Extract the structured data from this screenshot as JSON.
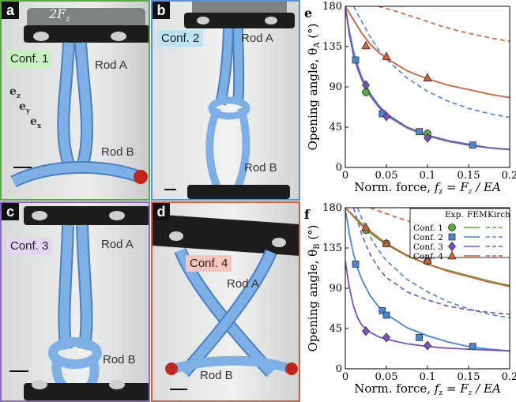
{
  "photos": {
    "a": {
      "letter": "a",
      "conf": "Conf. 1",
      "rodA": "Rod A",
      "rodB": "Rod B",
      "force": "2F",
      "force_sub": "z",
      "border": "#58a84a",
      "tag_bg": "#c9f0c0",
      "axes": {
        "ez": "e",
        "ez_sub": "z",
        "ey": "e",
        "ey_sub": "y",
        "ex": "e",
        "ex_sub": "x"
      }
    },
    "b": {
      "letter": "b",
      "conf": "Conf. 2",
      "rodA": "Rod A",
      "rodB": "Rod B",
      "border": "#5a8fd6",
      "tag_bg": "#bfe3f2"
    },
    "c": {
      "letter": "c",
      "conf": "Conf. 3",
      "rodA": "Rod A",
      "rodB": "Rod B",
      "border": "#8d68c4",
      "tag_bg": "#e2d6f2"
    },
    "d": {
      "letter": "d",
      "conf": "Conf. 4",
      "rodA": "Rod A",
      "rodB": "Rod B",
      "border": "#d2603a",
      "tag_bg": "#f6c6bd"
    }
  },
  "colors": {
    "rod": "#7eb0e6",
    "rod_dark": "#4d7fc0",
    "plate": "#1d1d1d",
    "conf1": "#5aaa40",
    "conf2": "#4a86d8",
    "conf3": "#7b4fbe",
    "conf4": "#d2603a"
  },
  "legend": {
    "headers": [
      "Exp.",
      "FEM",
      "Kirch"
    ],
    "rows": [
      "Conf. 1",
      "Conf. 2",
      "Conf. 3",
      "Conf. 4"
    ]
  },
  "chart_data": [
    {
      "panel": "e",
      "type": "scatter",
      "ylabel": "Opening angle, θ",
      "ylabel_sub": "A",
      "ylabel_unit": " (°)",
      "xlabel": "Norm. force, ",
      "xlabel_math": "f",
      "xlabel_rest": " = F",
      "xlabel_rest2": " / EA",
      "xlim": [
        0,
        0.2
      ],
      "ylim": [
        0,
        180
      ],
      "xticks": [
        "0",
        "0.05",
        "0.1",
        "0.15",
        "0.2"
      ],
      "yticks": [
        "0",
        "45",
        "90",
        "135",
        "180"
      ],
      "series": [
        {
          "name": "Conf. 1",
          "exp": [
            [
              0.025,
              84
            ],
            [
              0.1,
              38
            ]
          ],
          "fem": [
            [
              0,
              180
            ],
            [
              0.005,
              150
            ],
            [
              0.01,
              125
            ],
            [
              0.015,
              110
            ],
            [
              0.02,
              98
            ],
            [
              0.03,
              80
            ],
            [
              0.04,
              68
            ],
            [
              0.05,
              58
            ],
            [
              0.075,
              44
            ],
            [
              0.1,
              35
            ],
            [
              0.125,
              29
            ],
            [
              0.15,
              25
            ],
            [
              0.175,
              22
            ],
            [
              0.2,
              20
            ]
          ]
        },
        {
          "name": "Conf. 2",
          "exp": [
            [
              0.0125,
              120
            ],
            [
              0.045,
              60
            ],
            [
              0.09,
              40
            ],
            [
              0.155,
              25
            ]
          ],
          "fem": [
            [
              0,
              178
            ],
            [
              0.005,
              152
            ],
            [
              0.01,
              130
            ],
            [
              0.015,
              114
            ],
            [
              0.02,
              101
            ],
            [
              0.03,
              83
            ],
            [
              0.04,
              70
            ],
            [
              0.05,
              60
            ],
            [
              0.075,
              45
            ],
            [
              0.1,
              36
            ],
            [
              0.125,
              30
            ],
            [
              0.15,
              26
            ],
            [
              0.175,
              22
            ],
            [
              0.2,
              20
            ]
          ],
          "kirch": [
            [
              0.01,
              180
            ],
            [
              0.02,
              163
            ],
            [
              0.03,
              146
            ],
            [
              0.04,
              132
            ],
            [
              0.05,
              121
            ],
            [
              0.075,
              100
            ],
            [
              0.1,
              85
            ],
            [
              0.125,
              74
            ],
            [
              0.15,
              66
            ],
            [
              0.175,
              60
            ],
            [
              0.2,
              56
            ]
          ]
        },
        {
          "name": "Conf. 3",
          "exp": [
            [
              0.025,
              92
            ],
            [
              0.05,
              57
            ],
            [
              0.1,
              33
            ]
          ],
          "fem": [
            [
              0,
              180
            ],
            [
              0.005,
              148
            ],
            [
              0.01,
              126
            ],
            [
              0.015,
              111
            ],
            [
              0.02,
              99
            ],
            [
              0.03,
              81
            ],
            [
              0.04,
              69
            ],
            [
              0.05,
              59
            ],
            [
              0.075,
              45
            ],
            [
              0.1,
              36
            ],
            [
              0.125,
              30
            ],
            [
              0.15,
              25
            ],
            [
              0.175,
              22
            ],
            [
              0.2,
              20
            ]
          ]
        },
        {
          "name": "Conf. 4",
          "exp": [
            [
              0.025,
              136
            ],
            [
              0.05,
              124
            ],
            [
              0.1,
              100
            ]
          ],
          "fem": [
            [
              0,
              180
            ],
            [
              0.01,
              165
            ],
            [
              0.02,
              150
            ],
            [
              0.03,
              138
            ],
            [
              0.04,
              129
            ],
            [
              0.05,
              122
            ],
            [
              0.075,
              108
            ],
            [
              0.1,
              99
            ],
            [
              0.125,
              92
            ],
            [
              0.15,
              87
            ],
            [
              0.175,
              82
            ],
            [
              0.2,
              78
            ]
          ],
          "kirch": [
            [
              0.04,
              180
            ],
            [
              0.06,
              175
            ],
            [
              0.08,
              169
            ],
            [
              0.1,
              163
            ],
            [
              0.12,
              157
            ],
            [
              0.14,
              152
            ],
            [
              0.16,
              148
            ],
            [
              0.18,
              144
            ],
            [
              0.2,
              141
            ]
          ]
        }
      ]
    },
    {
      "panel": "f",
      "type": "scatter",
      "ylabel": "Opening angle, θ",
      "ylabel_sub": "B",
      "ylabel_unit": " (°)",
      "xlabel": "Norm. force, ",
      "xlabel_math": "f",
      "xlabel_rest": " = F",
      "xlabel_rest2": " / EA",
      "xlim": [
        0,
        0.2
      ],
      "ylim": [
        0,
        180
      ],
      "xticks": [
        "0",
        "0.05",
        "0.1",
        "0.15",
        "0.2"
      ],
      "yticks": [
        "0",
        "45",
        "90",
        "135",
        "180"
      ],
      "series": [
        {
          "name": "Conf. 1",
          "exp": [
            [
              0.025,
              155
            ],
            [
              0.05,
              140
            ],
            [
              0.1,
              120
            ]
          ],
          "fem": [
            [
              0,
              180
            ],
            [
              0.01,
              170
            ],
            [
              0.02,
              160
            ],
            [
              0.03,
              152
            ],
            [
              0.04,
              145
            ],
            [
              0.05,
              139
            ],
            [
              0.075,
              126
            ],
            [
              0.1,
              117
            ],
            [
              0.125,
              110
            ],
            [
              0.15,
              104
            ],
            [
              0.175,
              98
            ],
            [
              0.2,
              93
            ]
          ]
        },
        {
          "name": "Conf. 2",
          "exp": [
            [
              0.0125,
              117
            ],
            [
              0.045,
              65
            ],
            [
              0.05,
              60
            ],
            [
              0.09,
              35
            ],
            [
              0.155,
              25
            ]
          ],
          "fem": [
            [
              0,
              178
            ],
            [
              0.005,
              150
            ],
            [
              0.01,
              128
            ],
            [
              0.015,
              112
            ],
            [
              0.02,
              100
            ],
            [
              0.03,
              82
            ],
            [
              0.04,
              70
            ],
            [
              0.05,
              61
            ],
            [
              0.075,
              46
            ],
            [
              0.1,
              37
            ],
            [
              0.125,
              30
            ],
            [
              0.15,
              25
            ],
            [
              0.175,
              22
            ],
            [
              0.2,
              20
            ]
          ],
          "kirch": [
            [
              0.015,
              180
            ],
            [
              0.02,
              168
            ],
            [
              0.03,
              148
            ],
            [
              0.04,
              133
            ],
            [
              0.05,
              121
            ],
            [
              0.075,
              100
            ],
            [
              0.1,
              86
            ],
            [
              0.125,
              75
            ],
            [
              0.15,
              67
            ],
            [
              0.175,
              61
            ],
            [
              0.2,
              57
            ]
          ]
        },
        {
          "name": "Conf. 3",
          "exp": [
            [
              0.025,
              42
            ],
            [
              0.05,
              35
            ],
            [
              0.1,
              26
            ]
          ],
          "fem": [
            [
              0,
              120
            ],
            [
              0.005,
              90
            ],
            [
              0.01,
              70
            ],
            [
              0.015,
              57
            ],
            [
              0.02,
              49
            ],
            [
              0.03,
              41
            ],
            [
              0.04,
              36
            ],
            [
              0.05,
              33
            ],
            [
              0.075,
              28
            ],
            [
              0.1,
              25
            ],
            [
              0.125,
              23
            ],
            [
              0.15,
              22
            ],
            [
              0.175,
              21
            ],
            [
              0.2,
              20
            ]
          ],
          "kirch": [
            [
              0.01,
              180
            ],
            [
              0.02,
              150
            ],
            [
              0.03,
              128
            ],
            [
              0.04,
              113
            ],
            [
              0.05,
              102
            ],
            [
              0.075,
              86
            ],
            [
              0.1,
              77
            ],
            [
              0.125,
              70
            ],
            [
              0.15,
              66
            ],
            [
              0.175,
              63
            ],
            [
              0.2,
              61
            ]
          ]
        },
        {
          "name": "Conf. 4",
          "exp": [
            [
              0.025,
              158
            ],
            [
              0.05,
              140
            ],
            [
              0.1,
              121
            ]
          ],
          "fem": [
            [
              0,
              180
            ],
            [
              0.01,
              171
            ],
            [
              0.02,
              162
            ],
            [
              0.03,
              154
            ],
            [
              0.04,
              147
            ],
            [
              0.05,
              140
            ],
            [
              0.075,
              127
            ],
            [
              0.1,
              117
            ],
            [
              0.125,
              109
            ],
            [
              0.15,
              103
            ],
            [
              0.175,
              97
            ],
            [
              0.2,
              92
            ]
          ],
          "kirch": [
            [
              0.03,
              180
            ],
            [
              0.06,
              170
            ],
            [
              0.09,
              161
            ],
            [
              0.12,
              153
            ],
            [
              0.15,
              145
            ],
            [
              0.18,
              138
            ],
            [
              0.2,
              134
            ]
          ]
        }
      ]
    }
  ]
}
